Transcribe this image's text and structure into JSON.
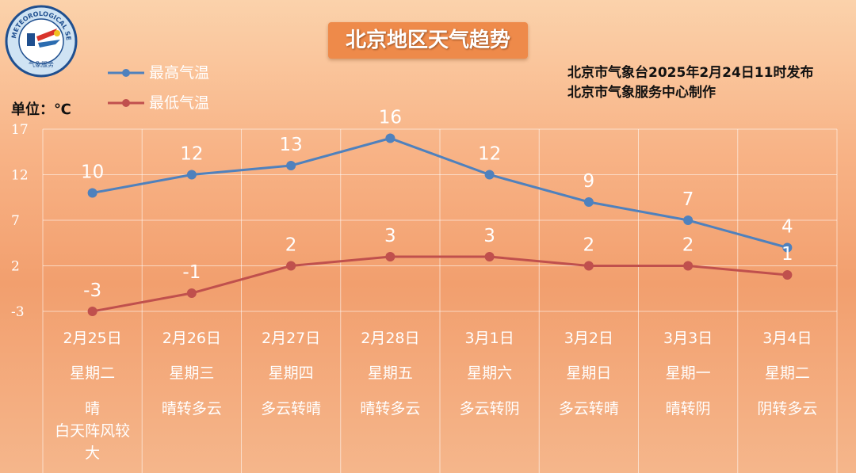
{
  "title": "北京地区天气趋势",
  "publisher": {
    "line1": "北京市气象台2025年2月24日11时发布",
    "line2": "北京市气象服务中心制作"
  },
  "unit_label": "单位：℃",
  "logo": {
    "ring_text": "METEOROLOGICAL SERVICE",
    "bottom_text": "气象服务"
  },
  "colors": {
    "high": "#4f81bd",
    "low": "#c0504d"
  },
  "chart_data": {
    "type": "line",
    "categories": [
      "2月25日",
      "2月26日",
      "2月27日",
      "2月28日",
      "3月1日",
      "3月2日",
      "3月3日",
      "3月4日"
    ],
    "series": [
      {
        "name": "最高气温",
        "values": [
          10,
          12,
          13,
          16,
          12,
          9,
          7,
          4
        ]
      },
      {
        "name": "最低气温",
        "values": [
          -3,
          -1,
          2,
          3,
          3,
          2,
          2,
          1
        ]
      }
    ],
    "yticks": [
      17,
      12,
      7,
      2,
      -3
    ],
    "ylim": [
      -3,
      17
    ],
    "grid": true,
    "legend": "top-left",
    "weekdays": [
      "星期二",
      "星期三",
      "星期四",
      "星期五",
      "星期六",
      "星期日",
      "星期一",
      "星期二"
    ],
    "weather": [
      [
        "晴",
        "白天阵风较",
        "大"
      ],
      [
        "晴转多云"
      ],
      [
        "多云转晴"
      ],
      [
        "晴转多云"
      ],
      [
        "多云转阴"
      ],
      [
        "多云转晴"
      ],
      [
        "晴转阴"
      ],
      [
        "阴转多云"
      ]
    ]
  }
}
